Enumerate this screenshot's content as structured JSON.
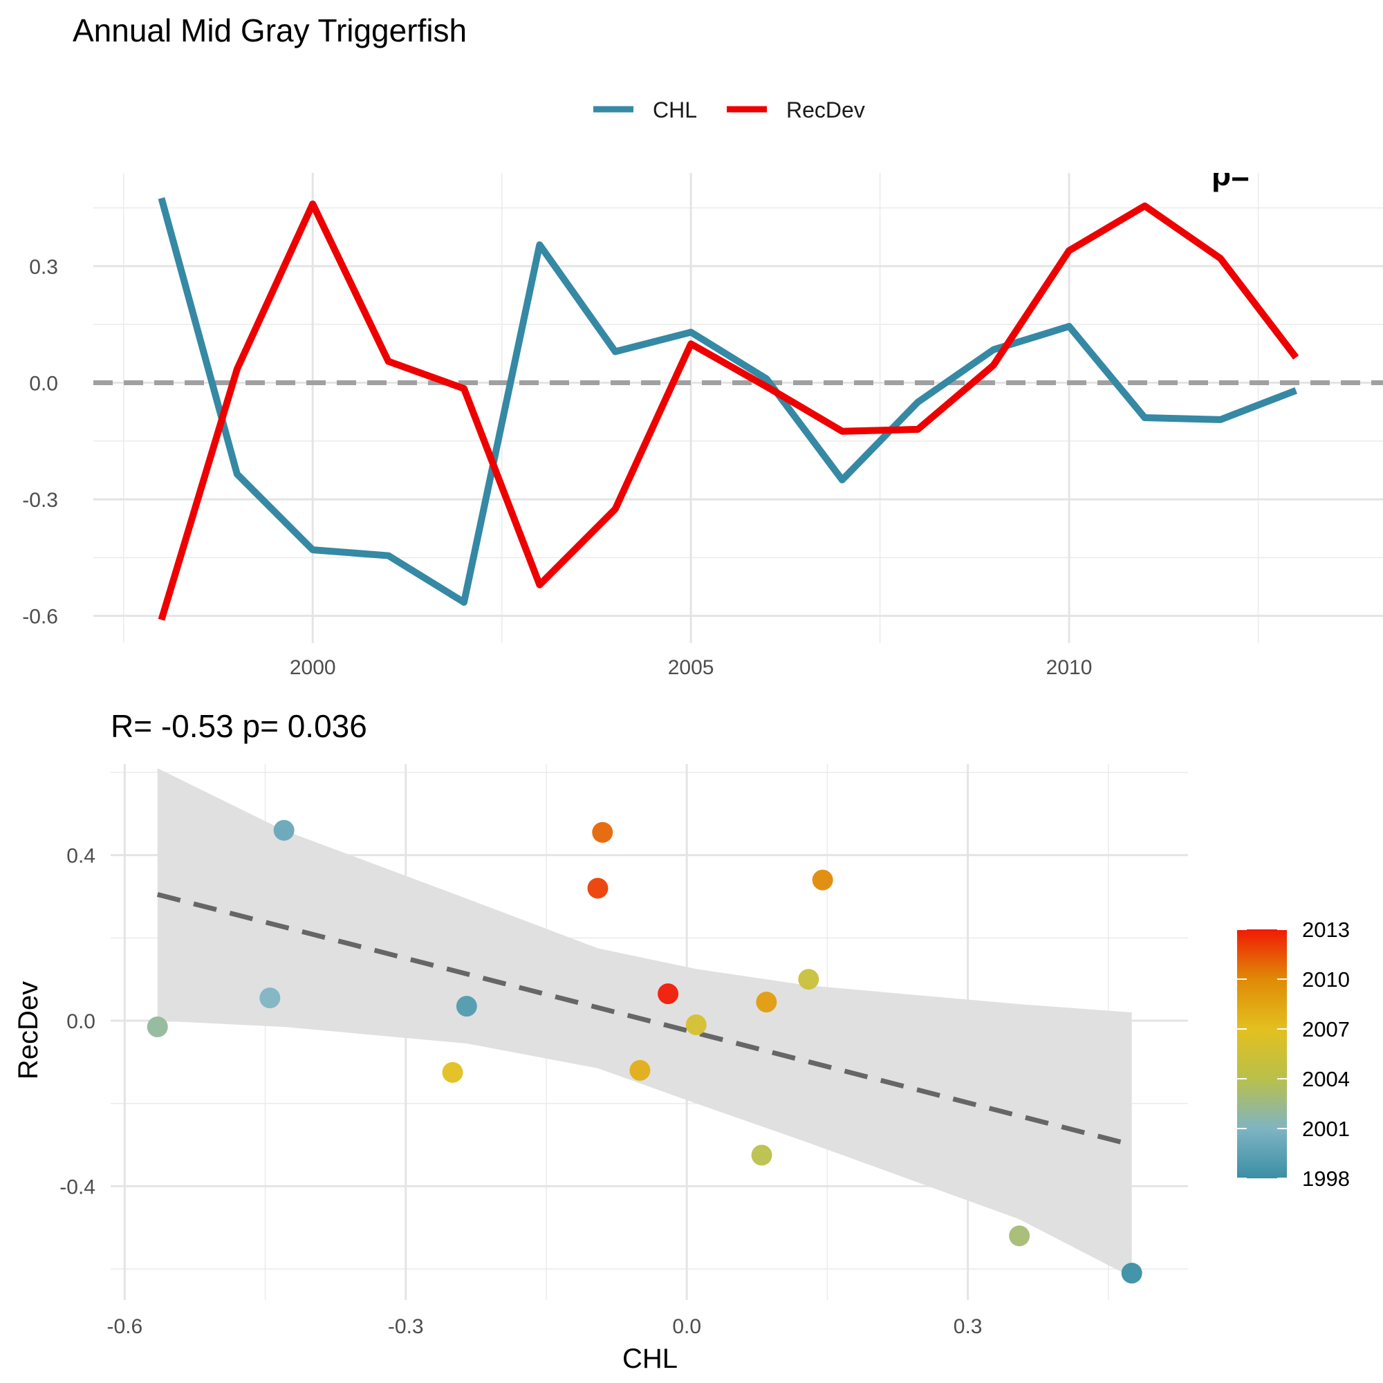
{
  "page": {
    "title": "Annual Mid Gray Triggerfish"
  },
  "legend_top": {
    "items": [
      {
        "label": "CHL",
        "color": "#3589A4"
      },
      {
        "label": "RecDev",
        "color": "#EE0000"
      }
    ]
  },
  "chart_data": [
    {
      "type": "line",
      "partial_top_right_text": "p=",
      "x": [
        1998,
        1999,
        2000,
        2001,
        2002,
        2003,
        2004,
        2005,
        2006,
        2007,
        2008,
        2009,
        2010,
        2011,
        2012,
        2013
      ],
      "series": [
        {
          "name": "CHL",
          "color": "#3589A4",
          "values": [
            0.475,
            -0.235,
            -0.43,
            -0.445,
            -0.565,
            0.355,
            0.08,
            0.13,
            0.01,
            -0.25,
            -0.05,
            0.085,
            0.145,
            -0.09,
            -0.095,
            -0.02
          ]
        },
        {
          "name": "RecDev",
          "color": "#EE0000",
          "values": [
            -0.61,
            0.035,
            0.46,
            0.055,
            -0.015,
            -0.52,
            -0.325,
            0.1,
            -0.01,
            -0.125,
            -0.12,
            0.045,
            0.34,
            0.455,
            0.32,
            0.065
          ]
        }
      ],
      "reference_line": {
        "y": 0,
        "style": "dashed",
        "color": "#A0A0A0"
      },
      "xlim": [
        1997.1,
        2014.15
      ],
      "ylim": [
        -0.67,
        0.54
      ],
      "x_ticks": [
        2000,
        2005,
        2010
      ],
      "x_tick_labels": [
        "2000",
        "2005",
        "2010"
      ],
      "y_ticks": [
        -0.6,
        -0.3,
        0.0,
        0.3
      ],
      "y_tick_labels": [
        "-0.6",
        "-0.3",
        "0.0",
        "0.3"
      ],
      "xlabel": "",
      "ylabel": "",
      "grid": true
    },
    {
      "type": "scatter",
      "title": "R= -0.53  p= 0.036",
      "xlabel": "CHL",
      "ylabel": "RecDev",
      "xlim": [
        -0.615,
        0.535
      ],
      "ylim": [
        -0.675,
        0.62
      ],
      "x_ticks": [
        -0.6,
        -0.3,
        0.0,
        0.3
      ],
      "x_tick_labels": [
        "-0.6",
        "-0.3",
        "0.0",
        "0.3"
      ],
      "y_ticks": [
        -0.4,
        0.0,
        0.4
      ],
      "y_tick_labels": [
        "-0.4",
        "0.0",
        "0.4"
      ],
      "points": [
        {
          "year": 1998,
          "x": 0.475,
          "y": -0.61
        },
        {
          "year": 1999,
          "x": -0.235,
          "y": 0.035
        },
        {
          "year": 2000,
          "x": -0.43,
          "y": 0.46
        },
        {
          "year": 2001,
          "x": -0.445,
          "y": 0.055
        },
        {
          "year": 2002,
          "x": -0.565,
          "y": -0.015
        },
        {
          "year": 2003,
          "x": 0.355,
          "y": -0.52
        },
        {
          "year": 2004,
          "x": 0.08,
          "y": -0.325
        },
        {
          "year": 2005,
          "x": 0.13,
          "y": 0.1
        },
        {
          "year": 2006,
          "x": 0.01,
          "y": -0.01
        },
        {
          "year": 2007,
          "x": -0.25,
          "y": -0.125
        },
        {
          "year": 2008,
          "x": -0.05,
          "y": -0.12
        },
        {
          "year": 2009,
          "x": 0.085,
          "y": 0.045
        },
        {
          "year": 2010,
          "x": 0.145,
          "y": 0.34
        },
        {
          "year": 2011,
          "x": -0.09,
          "y": 0.455
        },
        {
          "year": 2012,
          "x": -0.095,
          "y": 0.32
        },
        {
          "year": 2013,
          "x": -0.02,
          "y": 0.065
        }
      ],
      "fit_line": {
        "x": [
          -0.565,
          0.475
        ],
        "y": [
          0.305,
          -0.3
        ],
        "style": "dashed",
        "color": "#666666"
      },
      "confidence_band": {
        "x": [
          -0.565,
          -0.43,
          -0.235,
          -0.095,
          0.01,
          0.13,
          0.355,
          0.475
        ],
        "upper": [
          0.61,
          0.46,
          0.295,
          0.175,
          0.125,
          0.085,
          0.04,
          0.02
        ],
        "lower": [
          0.0,
          -0.015,
          -0.055,
          -0.115,
          -0.2,
          -0.295,
          -0.48,
          -0.62
        ],
        "color": "#E0E0E0"
      },
      "colorbar": {
        "label_ticks": [
          2013,
          2010,
          2007,
          2004,
          2001,
          1998
        ],
        "labels": [
          "2013",
          "2010",
          "2007",
          "2004",
          "2001",
          "1998"
        ],
        "range": [
          1998,
          2013
        ],
        "gradient_stops": [
          {
            "value": 1998,
            "color": "#3A8EA5"
          },
          {
            "value": 2001,
            "color": "#7FB4C3"
          },
          {
            "value": 2004,
            "color": "#B9C04B"
          },
          {
            "value": 2007,
            "color": "#E3C01F"
          },
          {
            "value": 2010,
            "color": "#E08A06"
          },
          {
            "value": 2013,
            "color": "#F11A05"
          }
        ]
      }
    }
  ]
}
